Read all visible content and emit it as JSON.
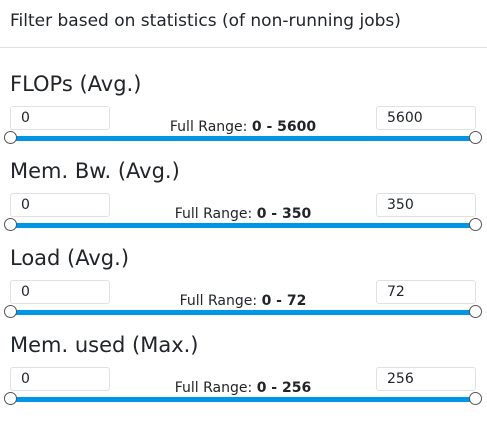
{
  "dialog": {
    "title": "Filter based on statistics (of non-running jobs)"
  },
  "full_range_prefix": "Full Range:",
  "filters": [
    {
      "title": "FLOPs (Avg.)",
      "min_value": "0",
      "max_value": "5600",
      "range_min": "0",
      "range_max": "5600",
      "selected_range_fraction": [
        0,
        1
      ]
    },
    {
      "title": "Mem. Bw. (Avg.)",
      "min_value": "0",
      "max_value": "350",
      "range_min": "0",
      "range_max": "350",
      "selected_range_fraction": [
        0,
        1
      ]
    },
    {
      "title": "Load (Avg.)",
      "min_value": "0",
      "max_value": "72",
      "range_min": "0",
      "range_max": "72",
      "selected_range_fraction": [
        0,
        1
      ]
    },
    {
      "title": "Mem. used (Max.)",
      "min_value": "0",
      "max_value": "256",
      "range_min": "0",
      "range_max": "256",
      "selected_range_fraction": [
        0,
        1
      ]
    }
  ],
  "colors": {
    "accent": "#0096e6",
    "text": "#212529",
    "border": "#dee2e6"
  }
}
